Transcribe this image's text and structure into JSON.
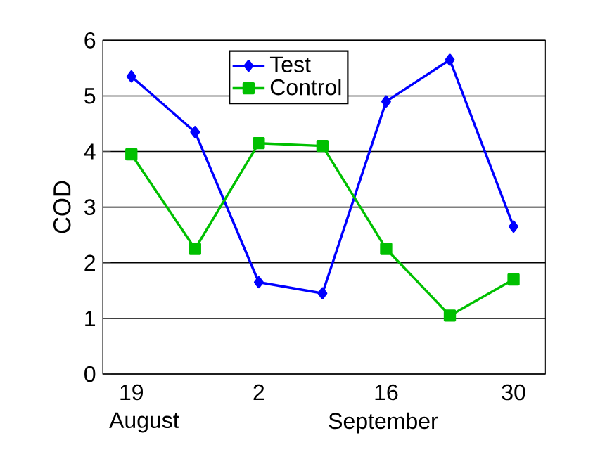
{
  "chart_data": {
    "type": "line",
    "ylabel": "COD",
    "categories": [
      "19",
      null,
      "2",
      null,
      "16",
      null,
      "30"
    ],
    "annotations": [
      "August",
      "September"
    ],
    "ylim": [
      0,
      6
    ],
    "yticks": [
      0,
      1,
      2,
      3,
      4,
      5,
      6
    ],
    "grid": "y",
    "legend": "top",
    "series": [
      {
        "name": "Test",
        "color": "#0000ff",
        "marker": "diamond",
        "values": [
          5.35,
          4.35,
          1.65,
          1.45,
          4.9,
          5.65,
          2.65
        ]
      },
      {
        "name": "Control",
        "color": "#00c000",
        "marker": "square",
        "values": [
          3.95,
          2.25,
          4.15,
          4.1,
          2.25,
          1.05,
          1.7
        ]
      }
    ]
  }
}
